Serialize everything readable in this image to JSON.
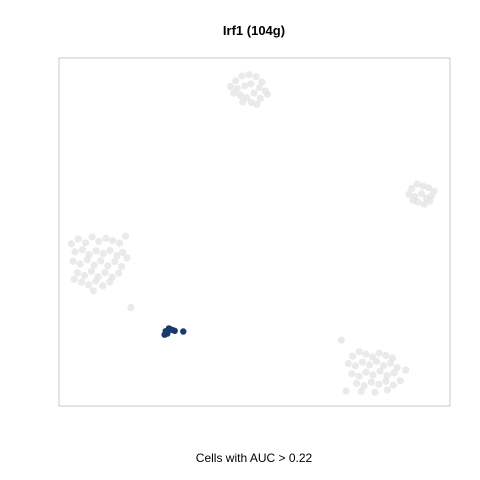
{
  "chart_data": {
    "type": "scatter",
    "title": "Irf1 (104g)",
    "xlabel": "Cells with AUC > 0.22",
    "ylabel": "",
    "xlim": [
      0,
      100
    ],
    "ylim": [
      0,
      100
    ],
    "grid": false,
    "axes_ticks": false,
    "colors": {
      "inactive": "#e3e3e3",
      "active": "#1a3a6e",
      "frame": "#c8c8c8"
    },
    "series": [
      {
        "status": "inactive",
        "points": [
          [
            45.2,
            93.4
          ],
          [
            46.8,
            94.8
          ],
          [
            48.6,
            95.2
          ],
          [
            50.4,
            94.6
          ],
          [
            51.9,
            93.1
          ],
          [
            43.9,
            91.8
          ],
          [
            45.6,
            91.2
          ],
          [
            47.5,
            92.0
          ],
          [
            49.1,
            92.6
          ],
          [
            51.2,
            91.4
          ],
          [
            52.8,
            90.5
          ],
          [
            46.4,
            89.3
          ],
          [
            48.0,
            88.6
          ],
          [
            49.9,
            89.9
          ],
          [
            51.5,
            88.4
          ],
          [
            53.3,
            89.6
          ],
          [
            47.0,
            87.4
          ],
          [
            49.2,
            87.2
          ],
          [
            50.6,
            86.7
          ],
          [
            44.7,
            89.9
          ],
          [
            90.2,
            62.5
          ],
          [
            91.6,
            63.8
          ],
          [
            93.1,
            63.2
          ],
          [
            94.5,
            62.7
          ],
          [
            95.9,
            61.7
          ],
          [
            89.5,
            60.8
          ],
          [
            91.0,
            60.2
          ],
          [
            92.7,
            61.0
          ],
          [
            94.0,
            59.7
          ],
          [
            95.2,
            60.3
          ],
          [
            91.8,
            58.6
          ],
          [
            93.4,
            58.0
          ],
          [
            90.6,
            59.1
          ],
          [
            94.8,
            58.9
          ],
          [
            3.2,
            46.6
          ],
          [
            4.9,
            48.0
          ],
          [
            6.8,
            46.9
          ],
          [
            8.5,
            48.6
          ],
          [
            10.2,
            47.3
          ],
          [
            12.0,
            48.2
          ],
          [
            13.7,
            47.5
          ],
          [
            15.5,
            46.8
          ],
          [
            17.0,
            48.8
          ],
          [
            4.1,
            44.3
          ],
          [
            6.0,
            44.9
          ],
          [
            7.7,
            43.5
          ],
          [
            9.5,
            44.6
          ],
          [
            11.3,
            43.8
          ],
          [
            13.0,
            44.7
          ],
          [
            14.8,
            43.2
          ],
          [
            16.3,
            44.1
          ],
          [
            3.6,
            41.6
          ],
          [
            5.4,
            40.8
          ],
          [
            7.2,
            42.0
          ],
          [
            9.0,
            40.5
          ],
          [
            10.7,
            41.7
          ],
          [
            12.5,
            40.3
          ],
          [
            14.3,
            41.5
          ],
          [
            16.0,
            40.1
          ],
          [
            4.7,
            38.3
          ],
          [
            6.5,
            37.5
          ],
          [
            8.3,
            38.7
          ],
          [
            10.0,
            37.1
          ],
          [
            11.8,
            38.4
          ],
          [
            13.6,
            37.0
          ],
          [
            15.3,
            38.2
          ],
          [
            5.8,
            35.6
          ],
          [
            7.6,
            34.8
          ],
          [
            9.4,
            35.9
          ],
          [
            11.2,
            34.5
          ],
          [
            13.0,
            35.7
          ],
          [
            3.9,
            36.4
          ],
          [
            17.4,
            42.6
          ],
          [
            8.8,
            33.1
          ],
          [
            18.4,
            28.3
          ],
          [
            72.2,
            18.9
          ],
          [
            75.1,
            14.3
          ],
          [
            76.8,
            15.6
          ],
          [
            78.5,
            14.9
          ],
          [
            80.2,
            14.1
          ],
          [
            81.9,
            15.2
          ],
          [
            83.6,
            14.5
          ],
          [
            85.3,
            13.8
          ],
          [
            74.0,
            12.2
          ],
          [
            75.8,
            11.5
          ],
          [
            77.6,
            12.6
          ],
          [
            79.4,
            11.8
          ],
          [
            81.2,
            12.9
          ],
          [
            83.0,
            11.6
          ],
          [
            84.8,
            12.3
          ],
          [
            86.5,
            11.0
          ],
          [
            74.9,
            9.3
          ],
          [
            76.7,
            8.6
          ],
          [
            78.5,
            9.7
          ],
          [
            80.3,
            8.9
          ],
          [
            82.1,
            10.0
          ],
          [
            83.9,
            8.7
          ],
          [
            85.7,
            9.5
          ],
          [
            88.7,
            10.3
          ],
          [
            76.1,
            6.5
          ],
          [
            78.0,
            5.8
          ],
          [
            79.9,
            6.9
          ],
          [
            81.8,
            6.2
          ],
          [
            83.6,
            7.1
          ],
          [
            85.5,
            6.0
          ],
          [
            87.3,
            7.3
          ],
          [
            77.3,
            4.2
          ],
          [
            80.8,
            4.0
          ],
          [
            84.0,
            4.6
          ],
          [
            73.4,
            4.3
          ]
        ]
      },
      {
        "status": "active",
        "points": [
          [
            27.3,
            21.5
          ],
          [
            28.1,
            22.3
          ],
          [
            28.9,
            21.9
          ],
          [
            27.7,
            20.8
          ],
          [
            29.6,
            21.6
          ],
          [
            31.8,
            21.4
          ],
          [
            27.0,
            20.5
          ]
        ]
      }
    ]
  }
}
